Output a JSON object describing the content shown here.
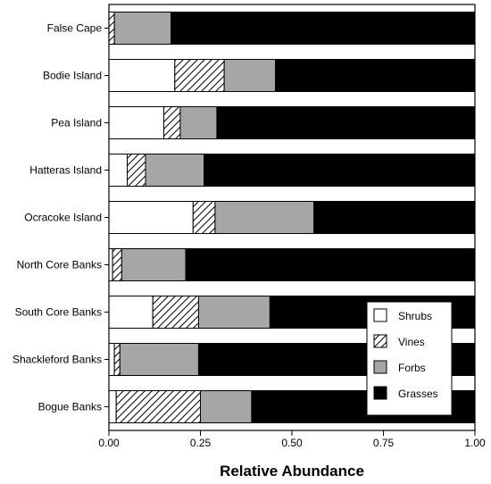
{
  "chart_data": {
    "type": "bar",
    "orientation": "horizontal",
    "stacked": true,
    "xlabel": "Relative Abundance",
    "ylabel": "",
    "xlim": [
      0,
      1
    ],
    "xticks": [
      "0.00",
      "0.25",
      "0.50",
      "0.75",
      "1.00"
    ],
    "legend_position": "bottom-right",
    "grid": false,
    "categories": [
      "False Cape",
      "Bodie Island",
      "Pea Island",
      "Hatteras Island",
      "Ocracoke Island",
      "North Core Banks",
      "South Core Banks",
      "Shackleford Banks",
      "Bogue Banks"
    ],
    "series": [
      {
        "name": "Shrubs",
        "pattern": "white",
        "values": [
          0.0,
          0.18,
          0.15,
          0.05,
          0.23,
          0.01,
          0.12,
          0.015,
          0.02
        ]
      },
      {
        "name": "Vines",
        "pattern": "hatched",
        "values": [
          0.015,
          0.135,
          0.045,
          0.05,
          0.06,
          0.025,
          0.125,
          0.015,
          0.23
        ]
      },
      {
        "name": "Forbs",
        "pattern": "gray",
        "values": [
          0.155,
          0.14,
          0.1,
          0.16,
          0.27,
          0.175,
          0.195,
          0.215,
          0.14
        ]
      },
      {
        "name": "Grasses",
        "pattern": "black",
        "values": [
          0.83,
          0.545,
          0.705,
          0.74,
          0.44,
          0.79,
          0.56,
          0.755,
          0.61
        ]
      }
    ],
    "colors": {
      "Shrubs": "#ffffff",
      "Vines": "#ffffff",
      "Forbs": "#a6a6a6",
      "Grasses": "#000000"
    }
  }
}
